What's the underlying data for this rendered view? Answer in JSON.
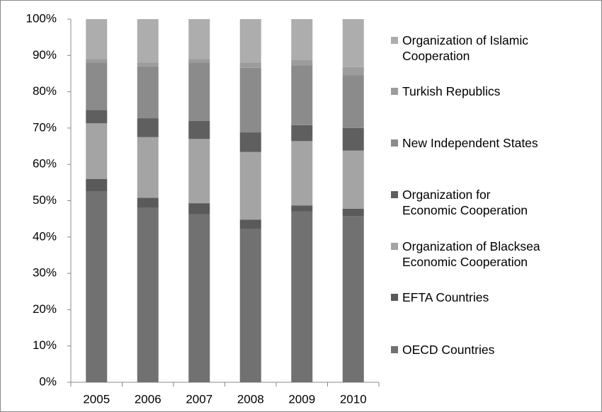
{
  "chart_data": {
    "type": "stacked_bar",
    "categories": [
      "2005",
      "2006",
      "2007",
      "2008",
      "2009",
      "2010"
    ],
    "ylim": [
      0,
      100
    ],
    "yticks": [
      {
        "value": 0,
        "label": "0%"
      },
      {
        "value": 10,
        "label": "10%"
      },
      {
        "value": 20,
        "label": "20%"
      },
      {
        "value": 30,
        "label": "30%"
      },
      {
        "value": 40,
        "label": "40%"
      },
      {
        "value": 50,
        "label": "50%"
      },
      {
        "value": 60,
        "label": "60%"
      },
      {
        "value": 70,
        "label": "70%"
      },
      {
        "value": 80,
        "label": "80%"
      },
      {
        "value": 90,
        "label": "90%"
      },
      {
        "value": 100,
        "label": "100%"
      }
    ],
    "grid": false,
    "legend": "right",
    "series": [
      {
        "name": "OECD Countries",
        "color": "#717171",
        "values": [
          52.5,
          48,
          46.3,
          42.3,
          47,
          45.8
        ]
      },
      {
        "name": "EFTA Countries",
        "color": "#5a5a5a",
        "values": [
          3.5,
          2.8,
          3,
          2.5,
          1.7,
          2
        ]
      },
      {
        "name": "Organization of Blacksea Economic Cooperation",
        "color": "#a4a4a4",
        "values": [
          15.3,
          16.7,
          17.7,
          18.6,
          17.7,
          16
        ]
      },
      {
        "name": "Organization for Economic Cooperation",
        "color": "#5f5f5f",
        "values": [
          3.7,
          5.2,
          5,
          5.4,
          4.4,
          6.2
        ]
      },
      {
        "name": "New Independent States",
        "color": "#8b8b8b",
        "values": [
          13,
          14.3,
          16,
          17.8,
          16.5,
          14.5
        ]
      },
      {
        "name": "Turkish Republics",
        "color": "#9c9c9c",
        "values": [
          1,
          1,
          1,
          1.4,
          1.4,
          2.3
        ]
      },
      {
        "name": "Organization of Islamic Cooperation",
        "color": "#adadad",
        "values": [
          11,
          12,
          11,
          12,
          11.3,
          13.2
        ]
      }
    ]
  }
}
